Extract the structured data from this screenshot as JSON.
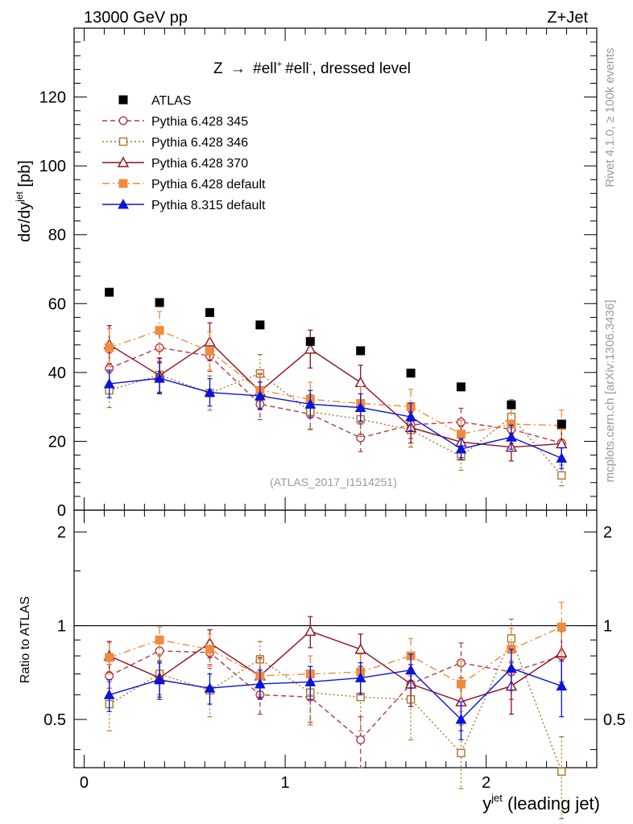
{
  "header": {
    "left": "13000 GeV pp",
    "right": "Z+Jet"
  },
  "side_labels": {
    "rivet": "Rivet 4.1.0, ≥ 100k events",
    "mcplots": "mcplots.cern.ch [arXiv:1306.3436]"
  },
  "chart_data": {
    "type": "scatter",
    "title": "Z → #ell⁺ #ell⁻, dressed level",
    "title_parts": {
      "prefix": "Z",
      "arrow": "→",
      "lep1": "#ell",
      "sup1": "+",
      "lep2": "#ell",
      "sup2": "-",
      "suffix": ", dressed level"
    },
    "watermark": "(ATLAS_2017_I1514251)",
    "xlabel": "y",
    "xlabel_sup": "jet",
    "xlabel_suffix": " (leading jet)",
    "ylabel": "dσ/dy",
    "ylabel_sup": "jet",
    "ylabel_suffix": " [pb]",
    "ratio_ylabel": "Ratio to ATLAS",
    "xlim": [
      -0.05,
      2.55
    ],
    "ylim": [
      0,
      140
    ],
    "ratio_ylim": [
      0.35,
      2.35
    ],
    "xticks": [
      0,
      1,
      2
    ],
    "xtick_labels": [
      "0",
      "1",
      "2"
    ],
    "yticks": [
      0,
      20,
      40,
      60,
      80,
      100,
      120
    ],
    "ytick_labels": [
      "0",
      "20",
      "40",
      "60",
      "80",
      "100",
      "120"
    ],
    "ratio_yticks": [
      0.5,
      1,
      2
    ],
    "ratio_ytick_labels": [
      "0.5",
      "1",
      "2"
    ],
    "x": [
      0.125,
      0.375,
      0.625,
      0.875,
      1.125,
      1.375,
      1.625,
      1.875,
      2.125,
      2.375
    ],
    "series": [
      {
        "name": "ATLAS",
        "color": "#000000",
        "marker": "square-filled",
        "line": "none",
        "values": [
          63.3,
          60.3,
          57.4,
          53.8,
          49.0,
          46.3,
          39.8,
          35.8,
          30.6,
          25.0
        ],
        "err": [
          0.6,
          0.6,
          0.6,
          0.6,
          0.6,
          0.6,
          0.6,
          0.6,
          0.6,
          0.6
        ],
        "ratio": [
          1,
          1,
          1,
          1,
          1,
          1,
          1,
          1,
          1,
          1
        ],
        "ratio_err": [
          0,
          0,
          0,
          0,
          0,
          0,
          0,
          0,
          0,
          0
        ]
      },
      {
        "name": "Pythia 6.428 345",
        "color": "#b03a48",
        "marker": "circle-open",
        "line": "dashed",
        "values": [
          41.2,
          47.2,
          44.8,
          30.8,
          27.9,
          21.0,
          24.8,
          25.6,
          23.5,
          19.5
        ],
        "err": [
          4.5,
          4.0,
          4.5,
          4.5,
          4.5,
          4.0,
          4.0,
          4.0,
          4.0,
          4.0
        ],
        "ratio": [
          0.69,
          0.83,
          0.82,
          0.6,
          0.59,
          0.43,
          0.65,
          0.76,
          0.71,
          0.8
        ],
        "ratio_err": [
          0.06,
          0.07,
          0.07,
          0.08,
          0.1,
          0.08,
          0.1,
          0.12,
          0.13,
          0.16
        ]
      },
      {
        "name": "Pythia 6.428 346",
        "color": "#a6762a",
        "marker": "square-open",
        "line": "dotted",
        "values": [
          34.8,
          39.3,
          34.0,
          39.7,
          28.6,
          26.4,
          23.3,
          15.6,
          27.1,
          10.1
        ],
        "err": [
          5.0,
          5.0,
          5.0,
          5.5,
          5.0,
          5.0,
          5.0,
          4.0,
          5.0,
          3.0
        ],
        "ratio": [
          0.56,
          0.7,
          0.62,
          0.78,
          0.61,
          0.59,
          0.58,
          0.39,
          0.91,
          0.34
        ],
        "ratio_err": [
          0.1,
          0.1,
          0.11,
          0.11,
          0.13,
          0.13,
          0.15,
          0.09,
          0.14,
          0.1
        ]
      },
      {
        "name": "Pythia 6.428 370",
        "color": "#8b1020",
        "marker": "triangle-open",
        "line": "solid",
        "values": [
          48.1,
          39.1,
          48.9,
          34.5,
          46.8,
          37.1,
          24.0,
          19.8,
          18.3,
          19.3
        ],
        "err": [
          5.5,
          5.0,
          5.5,
          5.0,
          5.5,
          5.0,
          4.5,
          4.5,
          4.0,
          4.5
        ],
        "ratio": [
          0.8,
          0.68,
          0.88,
          0.69,
          0.96,
          0.84,
          0.65,
          0.57,
          0.64,
          0.82
        ],
        "ratio_err": [
          0.09,
          0.09,
          0.09,
          0.1,
          0.11,
          0.1,
          0.1,
          0.11,
          0.12,
          0.16
        ]
      },
      {
        "name": "Pythia 6.428 default",
        "color": "#f08a3c",
        "marker": "square-filled",
        "line": "dashdot",
        "values": [
          47.2,
          52.2,
          46.2,
          34.8,
          32.2,
          31.0,
          30.1,
          22.1,
          25.0,
          24.6
        ],
        "err": [
          5.5,
          5.5,
          5.5,
          5.0,
          5.0,
          5.0,
          5.0,
          4.0,
          4.5,
          4.5
        ],
        "ratio": [
          0.79,
          0.9,
          0.84,
          0.69,
          0.7,
          0.71,
          0.8,
          0.65,
          0.84,
          0.99
        ],
        "ratio_err": [
          0.09,
          0.09,
          0.1,
          0.09,
          0.1,
          0.1,
          0.11,
          0.12,
          0.14,
          0.2
        ]
      },
      {
        "name": "Pythia 8.315 default",
        "color": "#0a14d8",
        "marker": "triangle-filled",
        "line": "solid",
        "values": [
          36.7,
          38.3,
          34.2,
          33.2,
          30.8,
          29.8,
          27.1,
          17.8,
          21.2,
          15.1
        ],
        "err": [
          4.0,
          4.5,
          4.0,
          4.0,
          4.0,
          4.0,
          4.0,
          3.0,
          3.5,
          3.0
        ],
        "ratio": [
          0.6,
          0.67,
          0.63,
          0.65,
          0.66,
          0.68,
          0.72,
          0.5,
          0.73,
          0.64
        ],
        "ratio_err": [
          0.07,
          0.09,
          0.07,
          0.07,
          0.08,
          0.08,
          0.09,
          0.07,
          0.11,
          0.13
        ]
      }
    ]
  }
}
